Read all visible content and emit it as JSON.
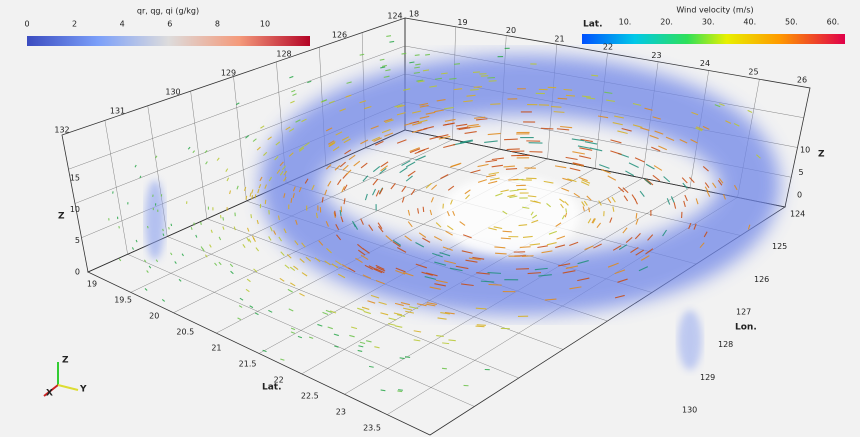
{
  "colorbars": [
    {
      "title": "qr, qg, qi (g/kg)",
      "ticks": [
        "0",
        "2",
        "4",
        "6",
        "8",
        "10"
      ]
    },
    {
      "title": "Wind velocity (m/s)",
      "label": "Lat.",
      "ticks": [
        "10.",
        "20.",
        "30.",
        "40.",
        "50.",
        "60."
      ]
    }
  ],
  "axes": {
    "z": {
      "label": "Z",
      "ticks": [
        "0",
        "5",
        "10",
        "15"
      ]
    },
    "z_right": {
      "label": "Z",
      "ticks": [
        "0",
        "5",
        "10"
      ]
    },
    "lat": {
      "label": "Lat.",
      "ticks": [
        "19",
        "19.5",
        "20",
        "20.5",
        "21",
        "21.5",
        "22",
        "22.5",
        "23",
        "23.5"
      ]
    },
    "lon": {
      "label": "Lon.",
      "ticks": [
        "124",
        "125",
        "126",
        "127",
        "128",
        "129",
        "130"
      ]
    },
    "top_lon": {
      "ticks": [
        "132",
        "131",
        "130",
        "129",
        "128",
        "126",
        "124"
      ]
    },
    "top_lat": {
      "ticks": [
        "18",
        "19",
        "20",
        "21",
        "22",
        "23",
        "24",
        "25",
        "26"
      ]
    }
  },
  "triad": {
    "z": "Z",
    "x": "X",
    "y": "Y"
  }
}
